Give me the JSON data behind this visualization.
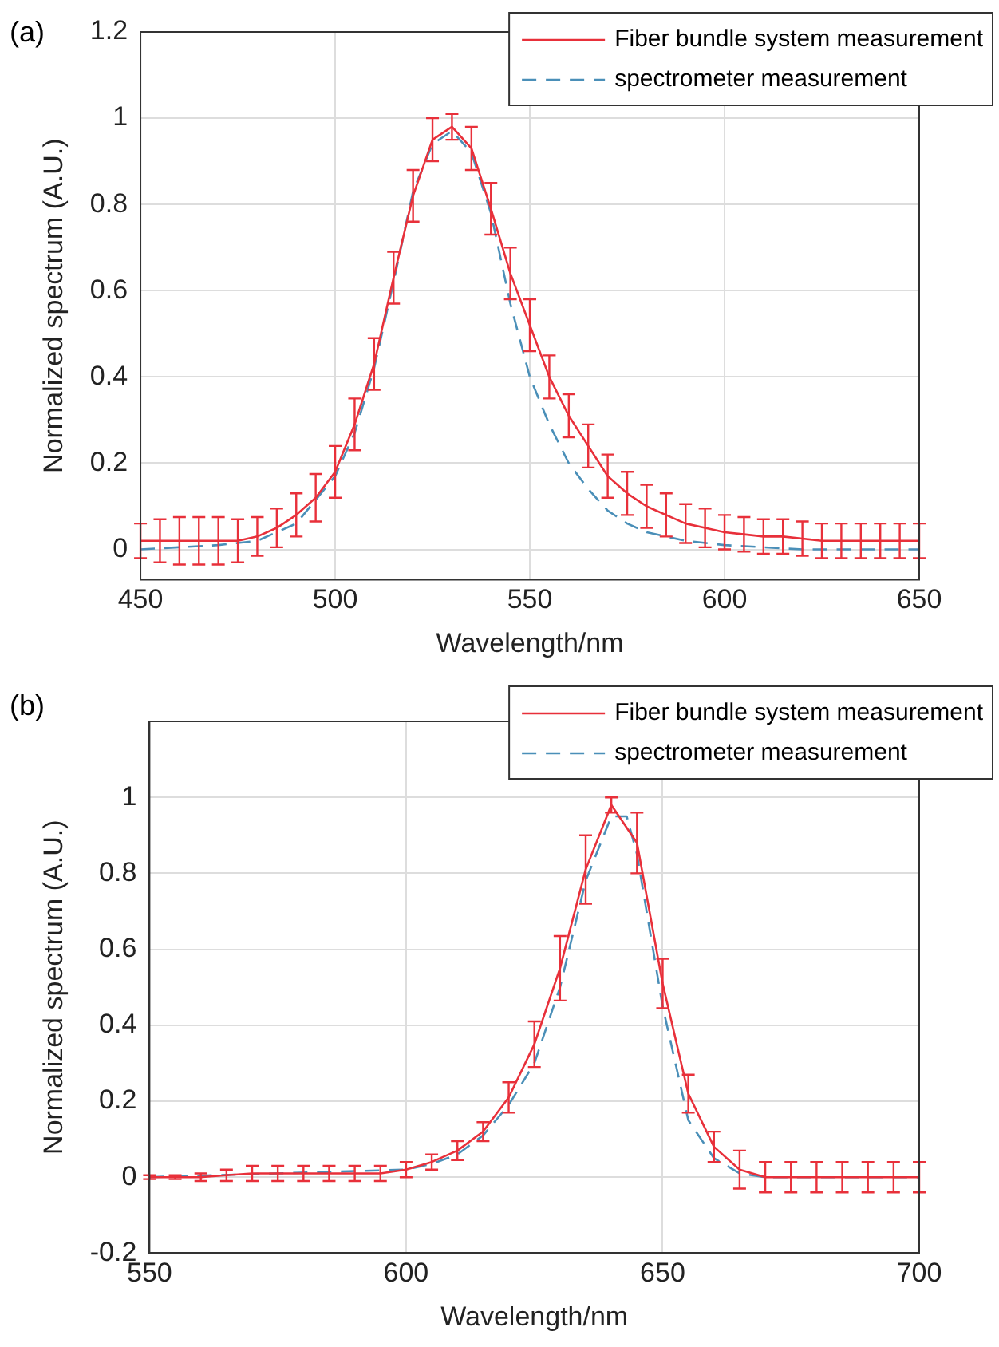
{
  "chart_data": [
    {
      "type": "line",
      "title": "(a)",
      "xlabel": "Wavelength/nm",
      "ylabel": "Normalized spectrum (A.U.)",
      "xlim": [
        450,
        650
      ],
      "xticks": [
        450,
        500,
        550,
        600,
        650
      ],
      "ylim": [
        -0.07,
        1.2
      ],
      "yticks": [
        0,
        0.2,
        0.4,
        0.6,
        0.8,
        1,
        1.2
      ],
      "grid": true,
      "legend": "top right",
      "marker": "none",
      "series": [
        {
          "name": "Fiber bundle system measurement",
          "color": "#e8303a",
          "line_style": "solid",
          "x": [
            450,
            455,
            460,
            465,
            470,
            475,
            480,
            485,
            490,
            495,
            500,
            505,
            510,
            515,
            520,
            525,
            530,
            535,
            540,
            545,
            550,
            555,
            560,
            565,
            570,
            575,
            580,
            585,
            590,
            595,
            600,
            605,
            610,
            615,
            620,
            625,
            630,
            635,
            640,
            645,
            650
          ],
          "values": [
            0.02,
            0.02,
            0.02,
            0.02,
            0.02,
            0.02,
            0.03,
            0.05,
            0.08,
            0.12,
            0.18,
            0.29,
            0.43,
            0.63,
            0.82,
            0.95,
            0.98,
            0.93,
            0.79,
            0.64,
            0.52,
            0.4,
            0.31,
            0.24,
            0.17,
            0.13,
            0.1,
            0.08,
            0.06,
            0.05,
            0.04,
            0.035,
            0.03,
            0.03,
            0.025,
            0.02,
            0.02,
            0.02,
            0.02,
            0.02,
            0.02
          ],
          "errors": [
            0.04,
            0.05,
            0.055,
            0.055,
            0.055,
            0.05,
            0.045,
            0.045,
            0.05,
            0.055,
            0.06,
            0.06,
            0.06,
            0.06,
            0.06,
            0.05,
            0.03,
            0.05,
            0.06,
            0.06,
            0.06,
            0.05,
            0.05,
            0.05,
            0.05,
            0.05,
            0.05,
            0.05,
            0.045,
            0.045,
            0.04,
            0.04,
            0.04,
            0.04,
            0.04,
            0.04,
            0.04,
            0.04,
            0.04,
            0.04,
            0.04
          ]
        },
        {
          "name": "spectrometer measurement",
          "color": "#4a8fb8",
          "line_style": "dashed",
          "x": [
            450,
            460,
            470,
            480,
            490,
            500,
            505,
            510,
            515,
            520,
            525,
            530,
            535,
            540,
            545,
            550,
            555,
            560,
            565,
            570,
            575,
            580,
            590,
            600,
            610,
            620,
            650
          ],
          "values": [
            0,
            0.005,
            0.01,
            0.02,
            0.06,
            0.17,
            0.27,
            0.42,
            0.62,
            0.83,
            0.94,
            0.97,
            0.92,
            0.78,
            0.57,
            0.4,
            0.29,
            0.2,
            0.14,
            0.09,
            0.06,
            0.04,
            0.02,
            0.01,
            0.005,
            0,
            0
          ]
        }
      ]
    },
    {
      "type": "line",
      "title": "(b)",
      "xlabel": "Wavelength/nm",
      "ylabel": "Normalized spectrum (A.U.)",
      "xlim": [
        550,
        700
      ],
      "xticks": [
        550,
        600,
        650,
        700
      ],
      "ylim": [
        -0.2,
        1.2
      ],
      "yticks": [
        -0.2,
        0,
        0.2,
        0.4,
        0.6,
        0.8,
        1
      ],
      "grid": true,
      "legend": "top right",
      "marker": "none",
      "series": [
        {
          "name": "Fiber bundle system measurement",
          "color": "#e8303a",
          "line_style": "solid",
          "x": [
            550,
            555,
            560,
            565,
            570,
            575,
            580,
            585,
            590,
            595,
            600,
            605,
            610,
            615,
            620,
            625,
            630,
            635,
            640,
            645,
            650,
            655,
            660,
            665,
            670,
            675,
            680,
            685,
            690,
            695,
            700
          ],
          "values": [
            0,
            0,
            0,
            0.005,
            0.01,
            0.01,
            0.01,
            0.01,
            0.01,
            0.01,
            0.02,
            0.04,
            0.07,
            0.12,
            0.21,
            0.35,
            0.55,
            0.81,
            0.98,
            0.88,
            0.51,
            0.22,
            0.08,
            0.02,
            0,
            0,
            0,
            0,
            0,
            0,
            0
          ],
          "errors": [
            0.005,
            0.005,
            0.01,
            0.015,
            0.02,
            0.02,
            0.02,
            0.02,
            0.02,
            0.02,
            0.02,
            0.02,
            0.025,
            0.025,
            0.04,
            0.06,
            0.085,
            0.09,
            0.02,
            0.08,
            0.065,
            0.05,
            0.04,
            0.05,
            0.04,
            0.04,
            0.04,
            0.04,
            0.04,
            0.04,
            0.04
          ]
        },
        {
          "name": "spectrometer measurement",
          "color": "#4a8fb8",
          "line_style": "dashed",
          "x": [
            550,
            600,
            605,
            610,
            615,
            620,
            625,
            630,
            635,
            640,
            643,
            645,
            650,
            655,
            660,
            665,
            670,
            700
          ],
          "values": [
            0,
            0.02,
            0.035,
            0.06,
            0.11,
            0.19,
            0.3,
            0.5,
            0.78,
            0.95,
            0.95,
            0.85,
            0.45,
            0.15,
            0.05,
            0.01,
            0,
            0
          ]
        }
      ]
    }
  ]
}
